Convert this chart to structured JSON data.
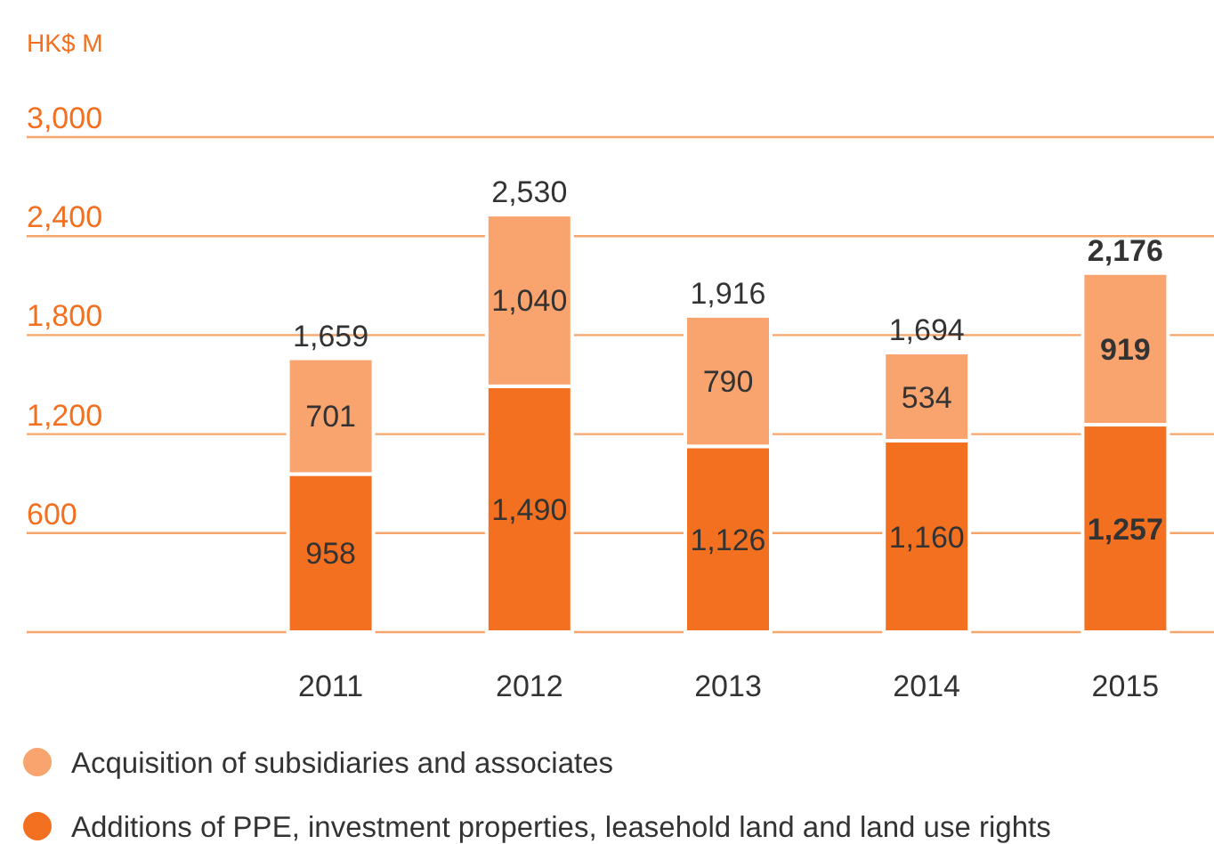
{
  "chart_data": {
    "type": "bar",
    "stacked": true,
    "ylabel": "HK$ M",
    "categories": [
      "2011",
      "2012",
      "2013",
      "2014",
      "2015"
    ],
    "series": [
      {
        "name": "Additions of PPE, investment properties, leasehold land and land use rights",
        "color": "#f37021",
        "values": [
          958,
          1490,
          1126,
          1160,
          1257
        ],
        "value_labels": [
          "958",
          "1,490",
          "1,126",
          "1,160",
          "1,257"
        ]
      },
      {
        "name": "Acquisition of subsidiaries and associates",
        "color": "#f9a46e",
        "values": [
          701,
          1040,
          790,
          534,
          919
        ],
        "value_labels": [
          "701",
          "1,040",
          "790",
          "534",
          "919"
        ]
      }
    ],
    "totals": [
      "1,659",
      "2,530",
      "1,916",
      "1,694",
      "2,176"
    ],
    "ylim": [
      0,
      3000
    ],
    "yticks": [
      {
        "value": 0,
        "label": null
      },
      {
        "value": 600,
        "label": "600"
      },
      {
        "value": 1200,
        "label": "1,200"
      },
      {
        "value": 1800,
        "label": "1,800"
      },
      {
        "value": 2400,
        "label": "2,400"
      },
      {
        "value": 3000,
        "label": "3,000"
      }
    ],
    "grid": "y",
    "legend": "bottom",
    "data_labels": true
  }
}
